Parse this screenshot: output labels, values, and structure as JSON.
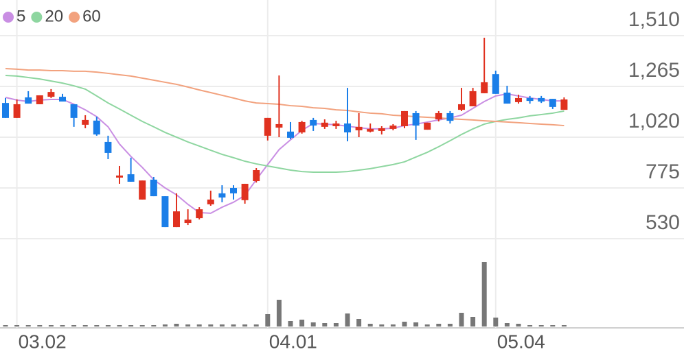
{
  "chart_data": [
    {
      "type": "candlestick",
      "categories": [
        null,
        "03.02",
        null,
        null,
        null,
        null,
        null,
        null,
        null,
        null,
        null,
        null,
        null,
        null,
        null,
        null,
        null,
        null,
        null,
        null,
        null,
        null,
        null,
        "04.01",
        null,
        null,
        null,
        null,
        null,
        null,
        null,
        null,
        null,
        null,
        null,
        null,
        null,
        null,
        null,
        null,
        null,
        null,
        null,
        "05.04",
        null,
        null,
        null,
        null,
        null,
        null
      ],
      "open": [
        1185,
        1113,
        1212,
        1179,
        1215,
        1215,
        1179,
        1080,
        1100,
        997,
        825,
        841,
        719,
        815,
        735,
        586,
        606,
        629,
        696,
        749,
        775,
        716,
        808,
        1027,
        1066,
        1047,
        1043,
        1103,
        1070,
        1073,
        1086,
        1053,
        1047,
        1050,
        1060,
        1073,
        1136,
        1056,
        1106,
        1136,
        1152,
        1169,
        1232,
        1324,
        1235,
        1189,
        1209,
        1209,
        1205,
        1152
      ],
      "high": [
        1209,
        1202,
        1242,
        1222,
        1252,
        1229,
        1179,
        1126,
        1119,
        1027,
        881,
        921,
        811,
        828,
        735,
        749,
        672,
        682,
        762,
        788,
        788,
        795,
        871,
        1113,
        1318,
        1093,
        1099,
        1113,
        1106,
        1099,
        1258,
        1136,
        1086,
        1073,
        1083,
        1146,
        1146,
        1090,
        1146,
        1146,
        1258,
        1258,
        1500,
        1341,
        1268,
        1225,
        1219,
        1219,
        1205,
        1212
      ],
      "low": [
        1113,
        1113,
        1182,
        1179,
        1209,
        1192,
        1070,
        1063,
        1027,
        914,
        795,
        805,
        719,
        735,
        586,
        586,
        596,
        623,
        689,
        706,
        719,
        699,
        801,
        1004,
        1020,
        1010,
        1037,
        1050,
        1060,
        1060,
        1000,
        1020,
        1043,
        1033,
        1053,
        1063,
        1007,
        1056,
        1096,
        1086,
        1146,
        1169,
        1232,
        1229,
        1182,
        1182,
        1182,
        1185,
        1156,
        1152
      ],
      "close": [
        1113,
        1179,
        1182,
        1222,
        1238,
        1192,
        1113,
        1103,
        1033,
        944,
        835,
        805,
        811,
        735,
        586,
        662,
        622,
        672,
        719,
        729,
        749,
        795,
        861,
        1113,
        1083,
        1017,
        1093,
        1076,
        1090,
        1086,
        1043,
        1070,
        1060,
        1063,
        1076,
        1146,
        1076,
        1090,
        1136,
        1099,
        1179,
        1242,
        1285,
        1229,
        1182,
        1209,
        1195,
        1192,
        1166,
        1202
      ],
      "up_color": "#e0311f",
      "down_color": "#1a7ee8",
      "series": [
        {
          "name": "5",
          "color": "#c98ee3",
          "values": [
            1212,
            1199,
            1192,
            1199,
            1202,
            1202,
            1179,
            1152,
            1119,
            1070,
            987,
            927,
            874,
            815,
            775,
            742,
            696,
            656,
            653,
            682,
            706,
            739,
            815,
            888,
            960,
            1007,
            1053,
            1086,
            1083,
            1080,
            1073,
            1066,
            1060,
            1060,
            1063,
            1076,
            1083,
            1093,
            1103,
            1113,
            1126,
            1159,
            1192,
            1219,
            1229,
            1219,
            1209,
            1202,
            1195,
            1195
          ]
        },
        {
          "name": "20",
          "color": "#8ed6a0",
          "values": [
            1318,
            1315,
            1308,
            1301,
            1291,
            1281,
            1268,
            1252,
            1219,
            1185,
            1156,
            1126,
            1096,
            1070,
            1043,
            1020,
            997,
            977,
            957,
            937,
            921,
            904,
            891,
            881,
            871,
            861,
            854,
            851,
            851,
            851,
            854,
            861,
            868,
            878,
            888,
            901,
            924,
            947,
            974,
            1003,
            1033,
            1060,
            1083,
            1096,
            1106,
            1113,
            1123,
            1129,
            1136,
            1146
          ]
        },
        {
          "name": "60",
          "color": "#f2a27e",
          "values": [
            1351,
            1348,
            1344,
            1344,
            1341,
            1341,
            1338,
            1338,
            1334,
            1328,
            1321,
            1315,
            1305,
            1295,
            1285,
            1275,
            1262,
            1248,
            1235,
            1222,
            1209,
            1195,
            1185,
            1182,
            1179,
            1172,
            1169,
            1162,
            1159,
            1152,
            1149,
            1142,
            1136,
            1133,
            1126,
            1123,
            1119,
            1116,
            1113,
            1109,
            1106,
            1103,
            1099,
            1096,
            1093,
            1090,
            1086,
            1083,
            1080,
            1076
          ]
        }
      ],
      "ylim": [
        530,
        1682
      ],
      "yticks": [
        {
          "value": 1510,
          "label": "1,510"
        },
        {
          "value": 1265,
          "label": "1,265"
        },
        {
          "value": 1020,
          "label": "1,020"
        },
        775,
        530
      ],
      "grid": true
    },
    {
      "type": "bar",
      "values": [
        2,
        2,
        2,
        2,
        2,
        2,
        2,
        2,
        2,
        2,
        2,
        2,
        2,
        2,
        3,
        4,
        3,
        3,
        3,
        3,
        3,
        3,
        3,
        18,
        39,
        8,
        10,
        6,
        5,
        5,
        19,
        11,
        4,
        3,
        3,
        7,
        6,
        3,
        4,
        4,
        20,
        14,
        94,
        13,
        5,
        4,
        2,
        2,
        2,
        2
      ],
      "color": "#777777",
      "ylim": [
        0,
        100
      ]
    }
  ]
}
